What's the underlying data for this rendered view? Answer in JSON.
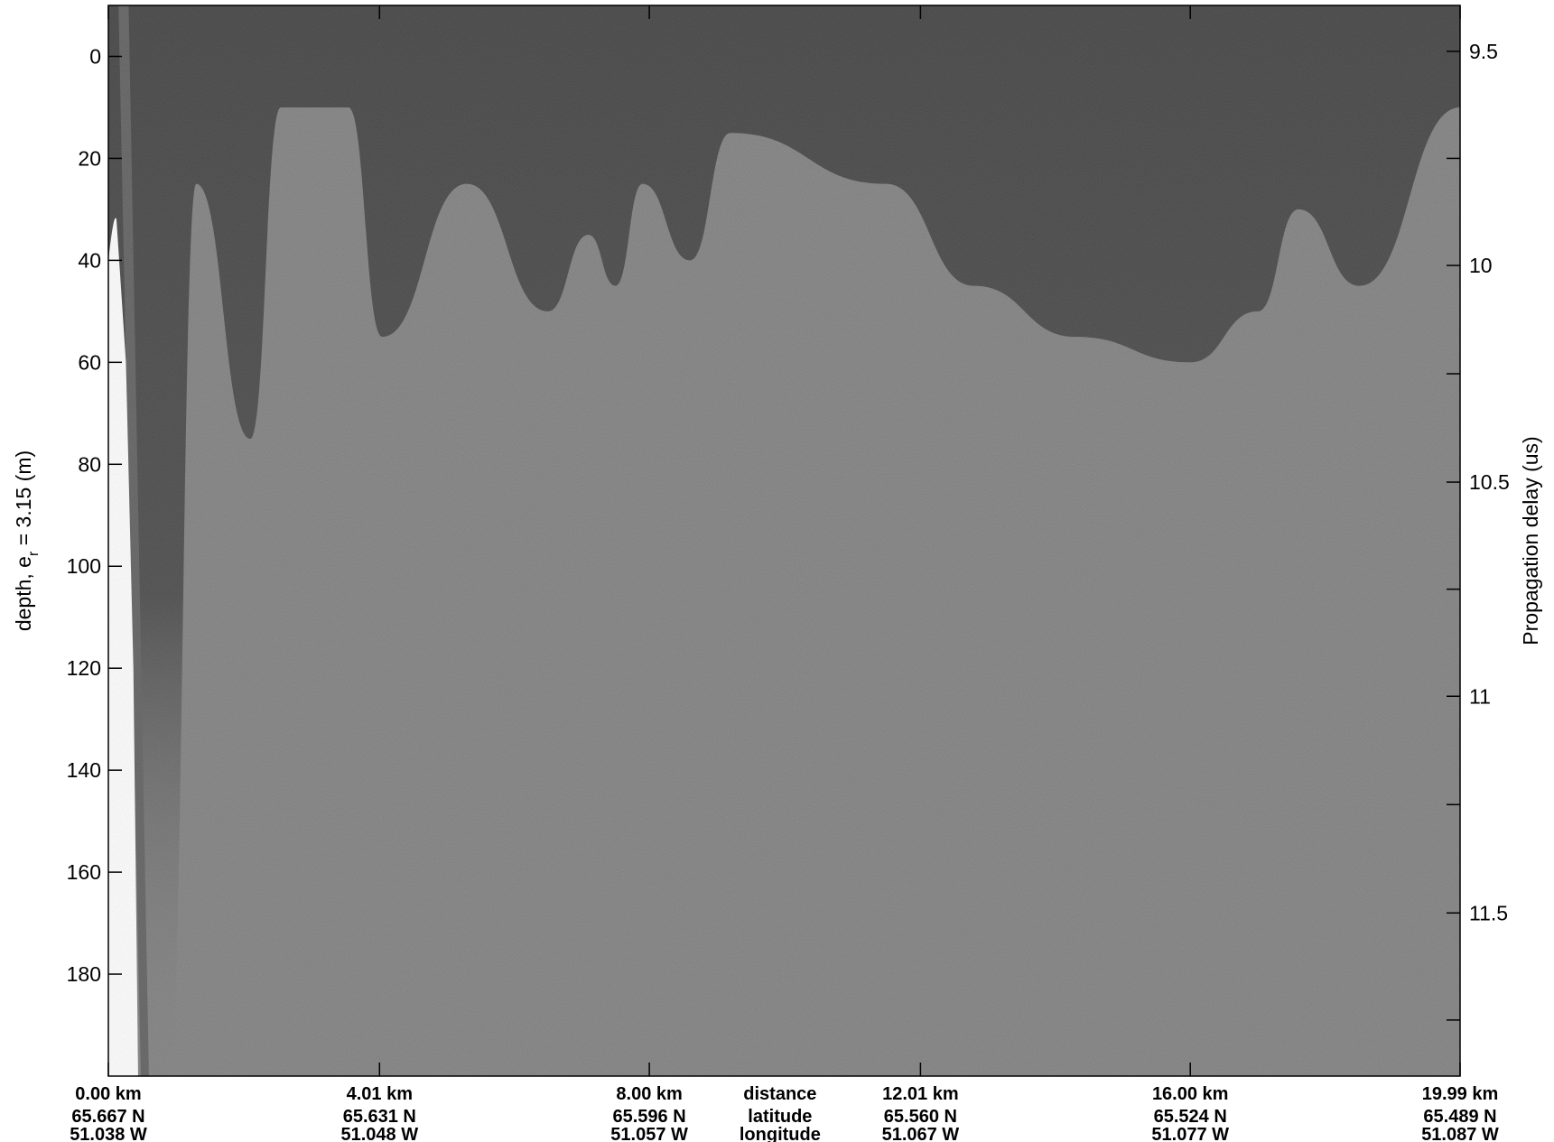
{
  "chart_data": {
    "type": "heatmap",
    "title": "",
    "left_axis": {
      "label_main": "depth, e",
      "label_sub": "r",
      "label_rest": " = 3.15 (m)",
      "range": [
        -10,
        200
      ],
      "ticks": [
        0,
        20,
        40,
        60,
        80,
        100,
        120,
        140,
        160,
        180
      ]
    },
    "right_axis": {
      "label": "Propagation delay (us)",
      "ticks": [
        9.5,
        10,
        10.5,
        11,
        11.5
      ],
      "tick_depth_positions": [
        -1,
        41,
        83.5,
        125.5,
        168
      ]
    },
    "x_axis": {
      "range_km": [
        0,
        19.99
      ],
      "ticks": [
        {
          "km": 0.0,
          "distance": "0.00 km",
          "latitude": "65.667 N",
          "longitude": "51.038 W"
        },
        {
          "km": 4.01,
          "distance": "4.01 km",
          "latitude": "65.631 N",
          "longitude": "51.048 W"
        },
        {
          "km": 8.0,
          "distance": "8.00 km",
          "latitude": "65.596 N",
          "longitude": "51.057 W"
        },
        {
          "km": 12.01,
          "distance": "12.01 km",
          "latitude": "65.560 N",
          "longitude": "51.067 W"
        },
        {
          "km": 16.0,
          "distance": "16.00 km",
          "latitude": "65.524 N",
          "longitude": "51.077 W"
        },
        {
          "km": 19.99,
          "distance": "19.99 km",
          "latitude": "65.489 N",
          "longitude": "51.087 W"
        }
      ],
      "row_names": {
        "distance": "distance",
        "latitude": "latitude",
        "longitude": "longitude"
      },
      "row_names_km": 10.0
    },
    "colormap": "grayscale",
    "grid": false,
    "dark_layer_bottom_depth_m": [
      [
        0.9,
        200
      ],
      [
        1.3,
        25
      ],
      [
        2.1,
        75
      ],
      [
        2.55,
        10
      ],
      [
        3.55,
        10
      ],
      [
        4.05,
        55
      ],
      [
        5.3,
        25
      ],
      [
        6.5,
        50
      ],
      [
        7.1,
        35
      ],
      [
        7.5,
        45
      ],
      [
        7.9,
        25
      ],
      [
        8.6,
        40
      ],
      [
        9.2,
        15
      ],
      [
        11.5,
        25
      ],
      [
        12.8,
        45
      ],
      [
        14.3,
        55
      ],
      [
        16.0,
        60
      ],
      [
        17.0,
        50
      ],
      [
        17.6,
        30
      ],
      [
        18.5,
        45
      ],
      [
        19.99,
        10
      ]
    ],
    "bright_wedge_right_edge": [
      {
        "depth_m": 32,
        "km": 0.12
      },
      {
        "depth_m": 60,
        "km": 0.26
      },
      {
        "depth_m": 120,
        "km": 0.37
      },
      {
        "depth_m": 200,
        "km": 0.44
      }
    ]
  }
}
